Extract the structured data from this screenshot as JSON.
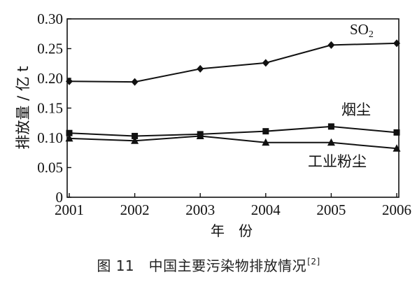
{
  "chart_data": {
    "type": "line",
    "ylabel": "排放量 / 亿 t",
    "xlabel": "年　份",
    "x": [
      "2001",
      "2002",
      "2003",
      "2004",
      "2005",
      "2006"
    ],
    "ylim": [
      0,
      0.3
    ],
    "yticks": [
      "0",
      "0.05",
      "0.10",
      "0.15",
      "0.20",
      "0.25",
      "0.30"
    ],
    "grid": false,
    "series": [
      {
        "name": "SO",
        "name_sub": "2",
        "marker": "diamond",
        "values": [
          0.195,
          0.194,
          0.216,
          0.226,
          0.256,
          0.259
        ]
      },
      {
        "name": "烟尘",
        "marker": "square",
        "values": [
          0.108,
          0.103,
          0.106,
          0.111,
          0.119,
          0.109
        ]
      },
      {
        "name": "工业粉尘",
        "marker": "triangle",
        "values": [
          0.099,
          0.095,
          0.103,
          0.092,
          0.092,
          0.082
        ]
      }
    ]
  },
  "caption": {
    "text": "图 11　中国主要污染物排放情况",
    "ref": "[2]"
  }
}
